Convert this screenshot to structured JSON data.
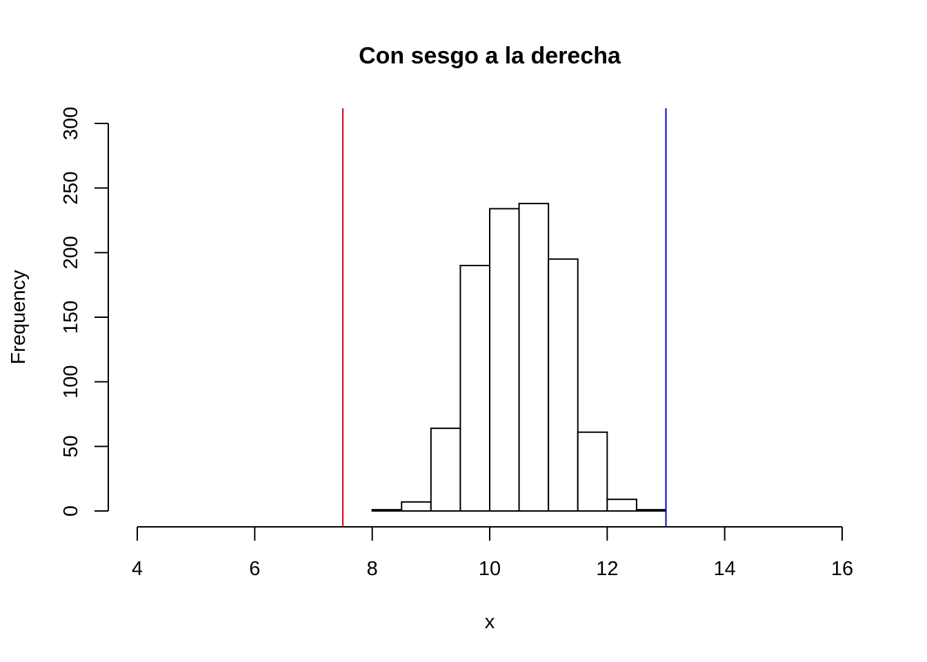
{
  "chart_data": {
    "type": "bar",
    "title": "Con sesgo a la derecha",
    "xlabel": "x",
    "ylabel": "Frequency",
    "xlim": [
      4,
      16
    ],
    "ylim": [
      0,
      300
    ],
    "x_ticks": [
      "4",
      "6",
      "8",
      "10",
      "12",
      "14",
      "16"
    ],
    "y_ticks": [
      "0",
      "50",
      "100",
      "150",
      "200",
      "250",
      "300"
    ],
    "bin_edges": [
      8.0,
      8.5,
      9.0,
      9.5,
      10.0,
      10.5,
      11.0,
      11.5,
      12.0,
      12.5,
      13.0
    ],
    "counts": [
      1,
      7,
      64,
      190,
      234,
      238,
      195,
      61,
      9,
      1
    ],
    "vertical_lines": [
      {
        "x": 7.5,
        "color": "#dd0000"
      },
      {
        "x": 13.0,
        "color": "#0000cc"
      }
    ],
    "grid": false,
    "legend": "none"
  }
}
